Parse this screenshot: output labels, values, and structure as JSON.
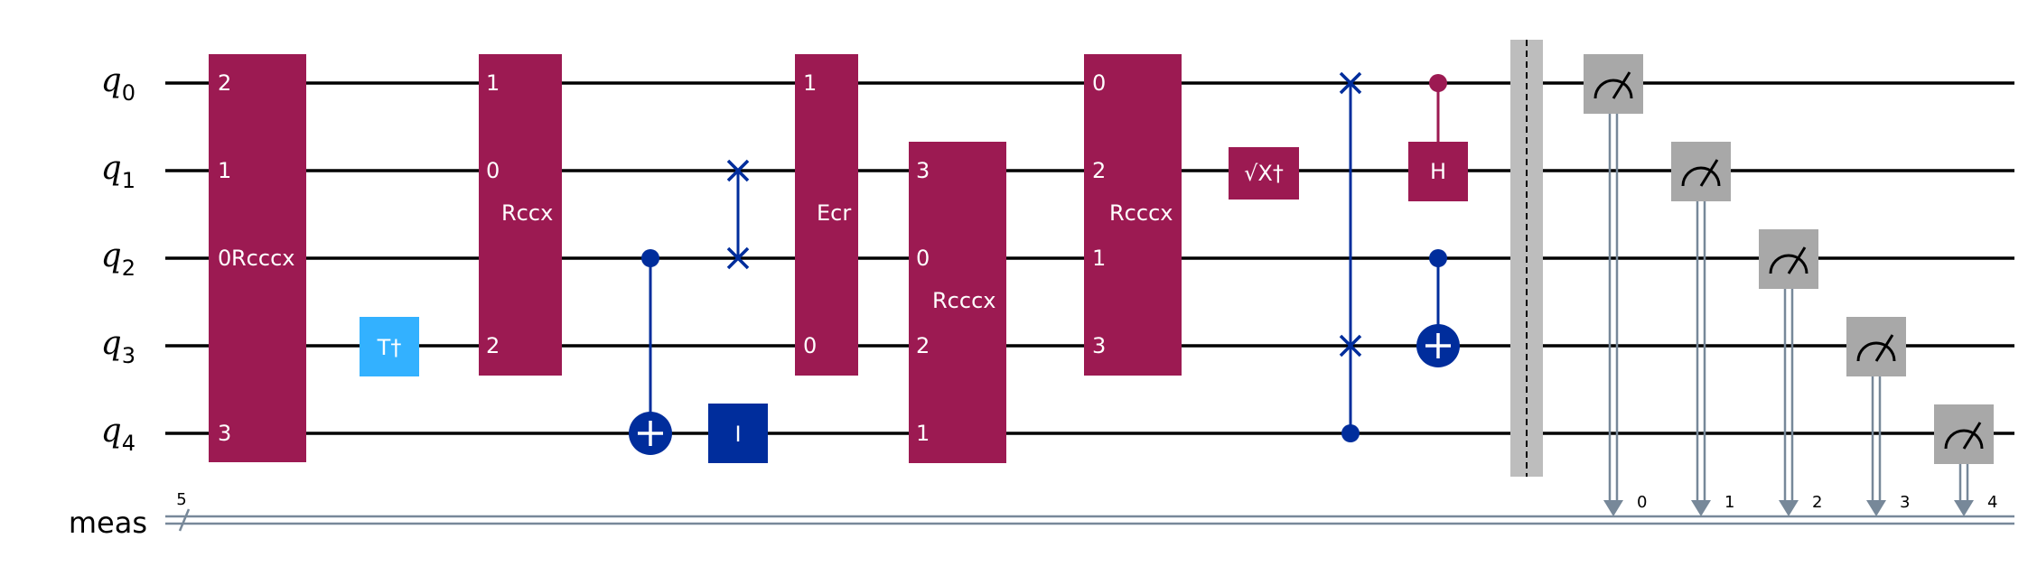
{
  "qubits": [
    {
      "id": "q0",
      "letter": "q",
      "sub": "0"
    },
    {
      "id": "q1",
      "letter": "q",
      "sub": "1"
    },
    {
      "id": "q2",
      "letter": "q",
      "sub": "2"
    },
    {
      "id": "q3",
      "letter": "q",
      "sub": "3"
    },
    {
      "id": "q4",
      "letter": "q",
      "sub": "4"
    }
  ],
  "classical": {
    "label": "meas",
    "size": "5"
  },
  "colors": {
    "multi_gate": "#9c1a52",
    "tdg_gate": "#33b1ff",
    "identity_gate": "#002d9c",
    "blue_ctrl": "#002d9c",
    "measure": "#a8a8a8",
    "barrier": "#bdbdbd",
    "creg": "#778899"
  },
  "gates": [
    {
      "name": "Rcccx",
      "kind": "multi",
      "qubit_labels": {
        "q0": "2",
        "q1": "1",
        "q2": "0",
        "q4": "3"
      }
    },
    {
      "name": "T†",
      "kind": "tdg",
      "qubit": "q3"
    },
    {
      "name": "Rccx",
      "kind": "multi",
      "qubit_labels": {
        "q0": "1",
        "q1": "0",
        "q3": "2"
      }
    },
    {
      "name": "CX",
      "kind": "cx",
      "control": "q2",
      "target": "q4"
    },
    {
      "name": "I",
      "kind": "id",
      "qubit": "q4"
    },
    {
      "name": "SWAP",
      "kind": "swap",
      "qubits": [
        "q1",
        "q2"
      ]
    },
    {
      "name": "Ecr",
      "kind": "multi",
      "qubit_labels": {
        "q0": "1",
        "q3": "0"
      }
    },
    {
      "name": "Rcccx",
      "kind": "multi",
      "qubit_labels": {
        "q1": "3",
        "q2": "0",
        "q3": "2",
        "q4": "1"
      }
    },
    {
      "name": "Rcccx",
      "kind": "multi",
      "qubit_labels": {
        "q0": "0",
        "q1": "2",
        "q2": "1",
        "q3": "3"
      }
    },
    {
      "name": "√X†",
      "kind": "sxdg",
      "qubit": "q1"
    },
    {
      "name": "CSWAP",
      "kind": "cswap",
      "control": "q4",
      "targets": [
        "q0",
        "q3"
      ]
    },
    {
      "name": "H",
      "kind": "ch",
      "control": "q0",
      "target": "q1"
    },
    {
      "name": "CX",
      "kind": "cx",
      "control": "q2",
      "target": "q3"
    },
    {
      "name": "Barrier",
      "kind": "barrier"
    },
    {
      "name": "Measure",
      "kind": "measure",
      "measurements": [
        {
          "qubit": "q0",
          "bit": "0"
        },
        {
          "qubit": "q1",
          "bit": "1"
        },
        {
          "qubit": "q2",
          "bit": "2"
        },
        {
          "qubit": "q3",
          "bit": "3"
        },
        {
          "qubit": "q4",
          "bit": "4"
        }
      ]
    }
  ]
}
